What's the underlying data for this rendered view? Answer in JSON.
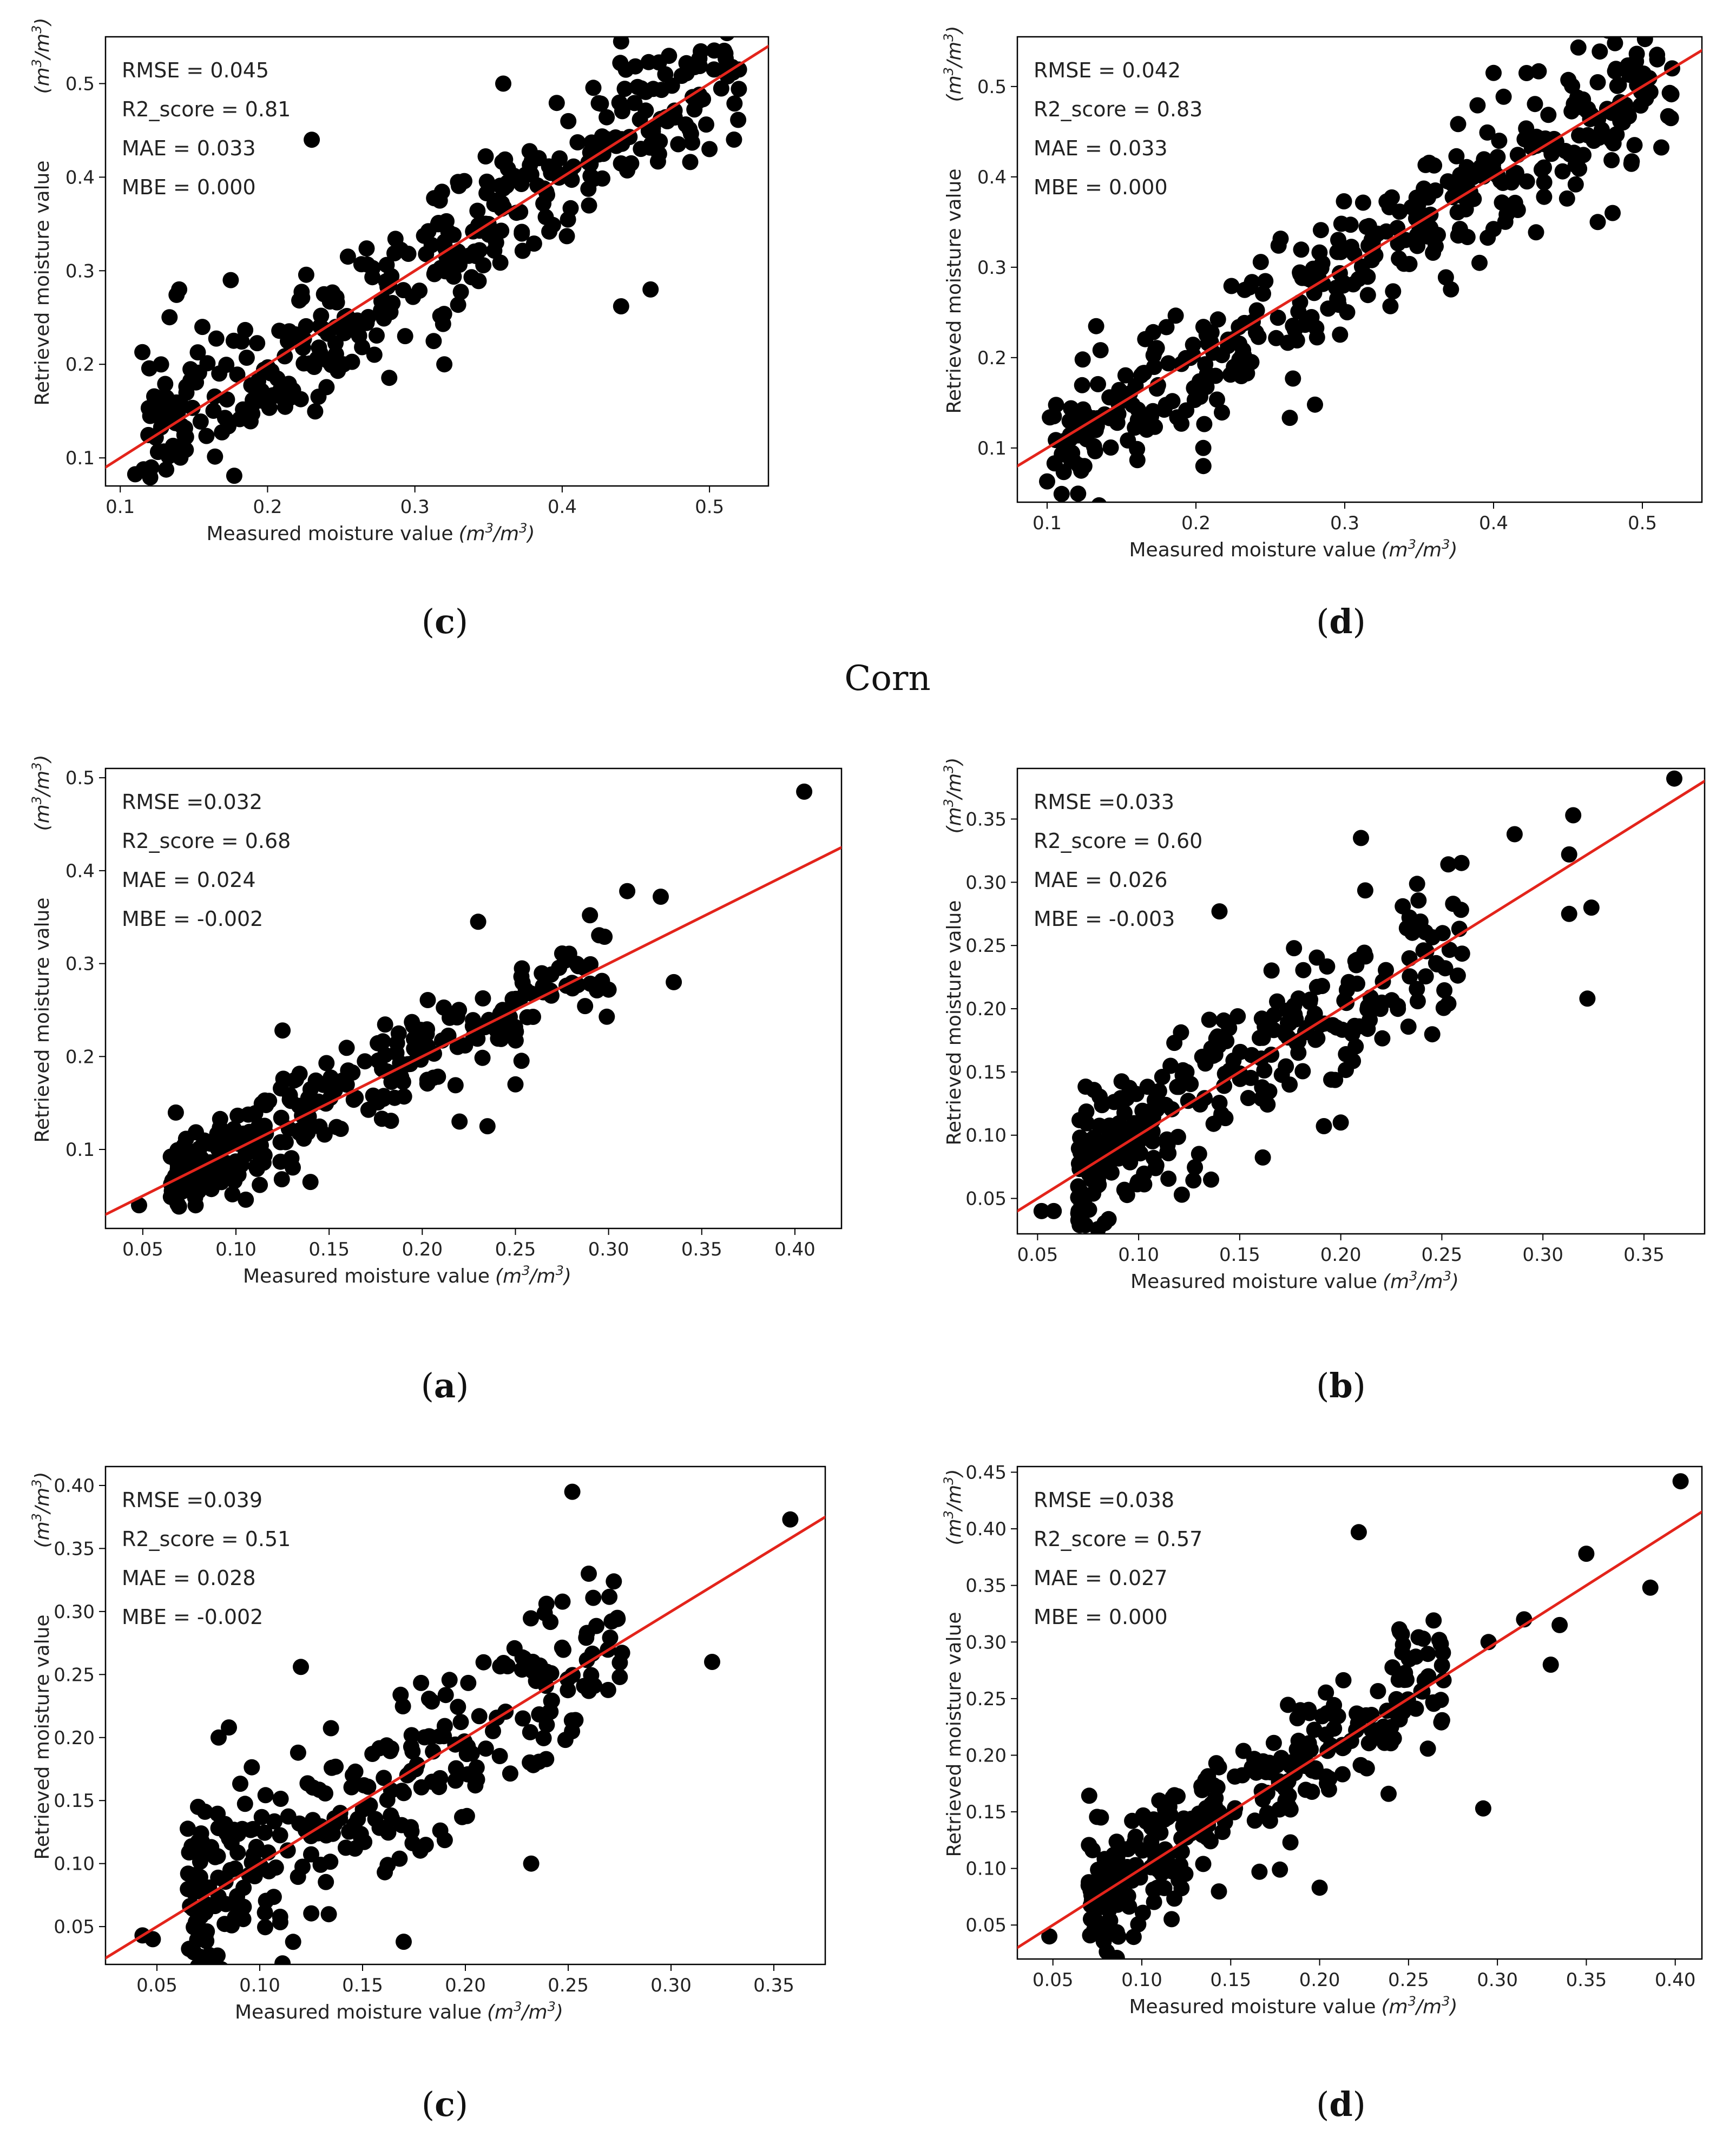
{
  "section_heading": "Corn",
  "chart_data": [
    {
      "id": "top-c",
      "type": "scatter",
      "caption_letter": "c",
      "xlabel": "Measured moisture value",
      "ylabel": "Retrieved moisture value",
      "unit": "m3/m3",
      "xlim": [
        0.09,
        0.54
      ],
      "ylim": [
        0.07,
        0.55
      ],
      "xticks": [
        "0.1",
        "0.2",
        "0.3",
        "0.4",
        "0.5"
      ],
      "yticks": [
        "0.1",
        "0.2",
        "0.3",
        "0.4",
        "0.5"
      ],
      "stats": {
        "rmse": "RMSE = 0.045",
        "r2": "R2_score = 0.81",
        "mae": "MAE = 0.033",
        "mbe": "MBE = 0.000"
      },
      "reference_line": "y = x",
      "n_points": 380,
      "seed": 11,
      "noise": 0.045,
      "x_range": [
        0.11,
        0.52
      ],
      "points": [
        [
          0.115,
          0.213
        ],
        [
          0.23,
          0.44
        ],
        [
          0.36,
          0.5
        ],
        [
          0.44,
          0.545
        ],
        [
          0.46,
          0.28
        ],
        [
          0.44,
          0.262
        ],
        [
          0.32,
          0.2
        ],
        [
          0.14,
          0.28
        ],
        [
          0.175,
          0.29
        ],
        [
          0.5,
          0.43
        ],
        [
          0.51,
          0.535
        ],
        [
          0.52,
          0.515
        ],
        [
          0.47,
          0.51
        ]
      ]
    },
    {
      "id": "top-d",
      "type": "scatter",
      "caption_letter": "d",
      "xlabel": "Measured moisture value",
      "ylabel": "Retrieved moisture value",
      "unit": "m3/m3",
      "xlim": [
        0.08,
        0.54
      ],
      "ylim": [
        0.04,
        0.555
      ],
      "xticks": [
        "0.1",
        "0.2",
        "0.3",
        "0.4",
        "0.5"
      ],
      "yticks": [
        "0.1",
        "0.2",
        "0.3",
        "0.4",
        "0.5"
      ],
      "stats": {
        "rmse": "RMSE = 0.042",
        "r2": "R2_score = 0.83",
        "mae": "MAE = 0.033",
        "mbe": "MBE = 0.000"
      },
      "reference_line": "y = x",
      "n_points": 400,
      "seed": 23,
      "noise": 0.042,
      "x_range": [
        0.1,
        0.52
      ],
      "points": [
        [
          0.1,
          0.063
        ],
        [
          0.105,
          0.083
        ],
        [
          0.125,
          0.08
        ],
        [
          0.205,
          0.08
        ],
        [
          0.28,
          0.148
        ],
        [
          0.4,
          0.515
        ],
        [
          0.48,
          0.36
        ],
        [
          0.47,
          0.35
        ],
        [
          0.52,
          0.52
        ],
        [
          0.51,
          0.53
        ]
      ]
    },
    {
      "id": "corn-a",
      "type": "scatter",
      "caption_letter": "a",
      "xlabel": "Measured moisture value",
      "ylabel": "Retrieved moisture value",
      "unit": "m3/m3",
      "xlim": [
        0.03,
        0.425
      ],
      "ylim": [
        0.015,
        0.51
      ],
      "xticks": [
        "0.05",
        "0.10",
        "0.15",
        "0.20",
        "0.25",
        "0.30",
        "0.35",
        "0.40"
      ],
      "yticks": [
        "0.1",
        "0.2",
        "0.3",
        "0.4",
        "0.5"
      ],
      "stats": {
        "rmse": "RMSE =0.032",
        "r2": "R2_score = 0.68",
        "mae": "MAE = 0.024",
        "mbe": "MBE = -0.002"
      },
      "reference_line": "y = x",
      "n_points": 300,
      "seed": 37,
      "noise": 0.028,
      "x_range": [
        0.065,
        0.3
      ],
      "skew": 0.55,
      "points": [
        [
          0.048,
          0.04
        ],
        [
          0.405,
          0.485
        ],
        [
          0.335,
          0.28
        ],
        [
          0.328,
          0.372
        ],
        [
          0.31,
          0.378
        ],
        [
          0.29,
          0.352
        ],
        [
          0.3,
          0.272
        ],
        [
          0.25,
          0.17
        ],
        [
          0.235,
          0.125
        ],
        [
          0.22,
          0.13
        ],
        [
          0.23,
          0.345
        ],
        [
          0.125,
          0.228
        ],
        [
          0.14,
          0.065
        ]
      ]
    },
    {
      "id": "corn-b",
      "type": "scatter",
      "caption_letter": "b",
      "xlabel": "Measured moisture value",
      "ylabel": "Retrieved moisture value",
      "unit": "m3/m3",
      "xlim": [
        0.04,
        0.38
      ],
      "ylim": [
        0.022,
        0.39
      ],
      "xticks": [
        "0.05",
        "0.10",
        "0.15",
        "0.20",
        "0.25",
        "0.30",
        "0.35"
      ],
      "yticks": [
        "0.05",
        "0.10",
        "0.15",
        "0.20",
        "0.25",
        "0.30",
        "0.35"
      ],
      "stats": {
        "rmse": "RMSE =0.033",
        "r2": "R2_score = 0.60",
        "mae": "MAE = 0.026",
        "mbe": "MBE = -0.003"
      },
      "reference_line": "y = x",
      "n_points": 300,
      "seed": 53,
      "noise": 0.035,
      "x_range": [
        0.07,
        0.26
      ],
      "skew": 0.6,
      "points": [
        [
          0.052,
          0.04
        ],
        [
          0.058,
          0.04
        ],
        [
          0.365,
          0.382
        ],
        [
          0.315,
          0.353
        ],
        [
          0.313,
          0.322
        ],
        [
          0.322,
          0.208
        ],
        [
          0.324,
          0.28
        ],
        [
          0.313,
          0.275
        ],
        [
          0.286,
          0.338
        ],
        [
          0.21,
          0.335
        ],
        [
          0.14,
          0.277
        ],
        [
          0.2,
          0.11
        ]
      ]
    },
    {
      "id": "corn-c",
      "type": "scatter",
      "caption_letter": "c",
      "xlabel": "Measured moisture value",
      "ylabel": "Retrieved moisture value",
      "unit": "m3/m3",
      "xlim": [
        0.025,
        0.375
      ],
      "ylim": [
        0.02,
        0.415
      ],
      "xticks": [
        "0.05",
        "0.10",
        "0.15",
        "0.20",
        "0.25",
        "0.30",
        "0.35"
      ],
      "yticks": [
        "0.05",
        "0.10",
        "0.15",
        "0.20",
        "0.25",
        "0.30",
        "0.35",
        "0.40"
      ],
      "stats": {
        "rmse": "RMSE =0.039",
        "r2": "R2_score = 0.51",
        "mae": "MAE = 0.028",
        "mbe": "MBE = -0.002"
      },
      "reference_line": "y = x",
      "n_points": 300,
      "seed": 71,
      "noise": 0.042,
      "x_range": [
        0.065,
        0.28
      ],
      "skew": 0.55,
      "points": [
        [
          0.043,
          0.043
        ],
        [
          0.048,
          0.04
        ],
        [
          0.358,
          0.373
        ],
        [
          0.252,
          0.395
        ],
        [
          0.26,
          0.33
        ],
        [
          0.32,
          0.26
        ],
        [
          0.17,
          0.038
        ],
        [
          0.232,
          0.1
        ],
        [
          0.07,
          0.145
        ],
        [
          0.08,
          0.2
        ],
        [
          0.085,
          0.208
        ],
        [
          0.12,
          0.256
        ]
      ]
    },
    {
      "id": "corn-d",
      "type": "scatter",
      "caption_letter": "d",
      "xlabel": "Measured moisture value",
      "ylabel": "Retrieved moisture value",
      "unit": "m3/m3",
      "xlim": [
        0.03,
        0.415
      ],
      "ylim": [
        0.02,
        0.455
      ],
      "xticks": [
        "0.05",
        "0.10",
        "0.15",
        "0.20",
        "0.25",
        "0.30",
        "0.35",
        "0.40"
      ],
      "yticks": [
        "0.05",
        "0.10",
        "0.15",
        "0.20",
        "0.25",
        "0.30",
        "0.35",
        "0.40",
        "0.45"
      ],
      "stats": {
        "rmse": "RMSE =0.038",
        "r2": "R2_score = 0.57",
        "mae": "MAE = 0.027",
        "mbe": "MBE = 0.000"
      },
      "reference_line": "y = x",
      "n_points": 300,
      "seed": 97,
      "noise": 0.036,
      "x_range": [
        0.07,
        0.27
      ],
      "skew": 0.55,
      "points": [
        [
          0.048,
          0.04
        ],
        [
          0.403,
          0.442
        ],
        [
          0.35,
          0.378
        ],
        [
          0.386,
          0.348
        ],
        [
          0.335,
          0.315
        ],
        [
          0.33,
          0.28
        ],
        [
          0.295,
          0.3
        ],
        [
          0.292,
          0.153
        ],
        [
          0.222,
          0.397
        ],
        [
          0.2,
          0.083
        ],
        [
          0.077,
          0.145
        ],
        [
          0.315,
          0.32
        ]
      ]
    }
  ],
  "colors": {
    "points": "#000000",
    "reference_line": "#e3241b",
    "axes": "#000000"
  }
}
